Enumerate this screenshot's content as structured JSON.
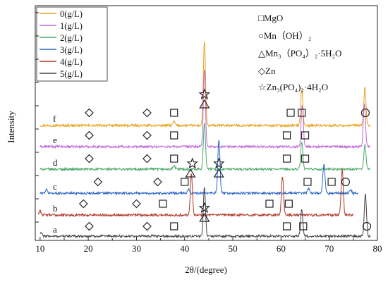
{
  "chart_data": {
    "type": "line",
    "xlabel": "2θ/(degree)",
    "ylabel": "Intensity",
    "xlim": [
      9,
      80
    ],
    "x_ticks": [
      10,
      20,
      30,
      40,
      50,
      60,
      70,
      80
    ],
    "y_ticks_labeled": false,
    "grid": false,
    "legend_placement": "top-left",
    "series": [
      {
        "name": "0(g/L)",
        "curve_label": "f",
        "color": "#e8a21c",
        "peaks": [
          {
            "x": 44.1,
            "h": 1.0
          },
          {
            "x": 64.3,
            "h": 0.42
          },
          {
            "x": 77.4,
            "h": 0.45
          },
          {
            "x": 37.8,
            "h": 0.05
          }
        ]
      },
      {
        "name": "1(g/L)",
        "curve_label": "e",
        "color": "#c06ad6",
        "peaks": [
          {
            "x": 44.1,
            "h": 0.9
          },
          {
            "x": 64.4,
            "h": 0.5
          },
          {
            "x": 77.3,
            "h": 0.52
          }
        ]
      },
      {
        "name": "2(g/L)",
        "curve_label": "d",
        "color": "#4aa86a",
        "peaks": [
          {
            "x": 44.1,
            "h": 0.55
          },
          {
            "x": 64.3,
            "h": 0.32
          },
          {
            "x": 77.4,
            "h": 0.3
          },
          {
            "x": 37.8,
            "h": 0.04
          }
        ]
      },
      {
        "name": "3(g/L)",
        "curve_label": "c",
        "color": "#2a66c8",
        "peaks": [
          {
            "x": 47.1,
            "h": 0.64
          },
          {
            "x": 40.8,
            "h": 0.05
          },
          {
            "x": 68.9,
            "h": 0.35
          },
          {
            "x": 65.7,
            "h": 0.06
          },
          {
            "x": 74.4,
            "h": 0.04
          },
          {
            "x": 11.3,
            "h": 0.04
          }
        ]
      },
      {
        "name": "4(g/L)",
        "curve_label": "b",
        "color": "#b03a2a",
        "peaks": [
          {
            "x": 41.4,
            "h": 0.5
          },
          {
            "x": 60.3,
            "h": 0.46
          },
          {
            "x": 72.7,
            "h": 0.55
          },
          {
            "x": 10.0,
            "h": 0.05
          }
        ]
      },
      {
        "name": "5(g/L)",
        "curve_label": "a",
        "color": "#444444",
        "peaks": [
          {
            "x": 44.1,
            "h": 0.58
          },
          {
            "x": 64.3,
            "h": 0.32
          },
          {
            "x": 77.5,
            "h": 0.5
          },
          {
            "x": 10.2,
            "h": 0.04
          }
        ]
      }
    ],
    "phase_legend": [
      {
        "symbol": "square",
        "label": "□MgO"
      },
      {
        "symbol": "circle",
        "label": "○Mn（OH）₂"
      },
      {
        "symbol": "triangle",
        "label": "△Mn₃（PO₄）₂·5H₂O"
      },
      {
        "symbol": "diamond",
        "label": "◇Zn"
      },
      {
        "symbol": "star",
        "label": "☆Zn₃(PO₄)₂·4H₂O"
      }
    ],
    "peak_markers": [
      {
        "curve": "f",
        "markers": [
          {
            "x": 20.2,
            "symbol": "diamond"
          },
          {
            "x": 32.2,
            "symbol": "diamond"
          },
          {
            "x": 37.8,
            "symbol": "square"
          },
          {
            "x": 62.0,
            "symbol": "square"
          },
          {
            "x": 64.3,
            "symbol": "square"
          },
          {
            "x": 77.5,
            "symbol": "circle"
          },
          {
            "x": 44.1,
            "symbol": "triangle"
          },
          {
            "x": 44.1,
            "symbol": "star"
          }
        ]
      },
      {
        "curve": "e",
        "markers": [
          {
            "x": 20.2,
            "symbol": "diamond"
          },
          {
            "x": 32.2,
            "symbol": "diamond"
          },
          {
            "x": 37.8,
            "symbol": "square"
          },
          {
            "x": 61.2,
            "symbol": "square"
          },
          {
            "x": 65.0,
            "symbol": "square"
          }
        ]
      },
      {
        "curve": "d",
        "markers": [
          {
            "x": 20.2,
            "symbol": "diamond"
          },
          {
            "x": 32.2,
            "symbol": "diamond"
          },
          {
            "x": 37.8,
            "symbol": "square"
          },
          {
            "x": 61.2,
            "symbol": "square"
          },
          {
            "x": 65.0,
            "symbol": "square"
          }
        ]
      },
      {
        "curve": "c",
        "markers": [
          {
            "x": 22.0,
            "symbol": "diamond"
          },
          {
            "x": 34.4,
            "symbol": "diamond"
          },
          {
            "x": 40.0,
            "symbol": "square"
          },
          {
            "x": 65.5,
            "symbol": "square"
          },
          {
            "x": 70.5,
            "symbol": "square"
          },
          {
            "x": 73.4,
            "symbol": "circle"
          },
          {
            "x": 47.1,
            "symbol": "triangle"
          },
          {
            "x": 47.1,
            "symbol": "star"
          },
          {
            "x": 41.2,
            "symbol": "triangle"
          },
          {
            "x": 41.6,
            "symbol": "star"
          }
        ]
      },
      {
        "curve": "b",
        "markers": [
          {
            "x": 19.0,
            "symbol": "diamond"
          },
          {
            "x": 30.0,
            "symbol": "diamond"
          },
          {
            "x": 35.5,
            "symbol": "square"
          },
          {
            "x": 57.6,
            "symbol": "square"
          },
          {
            "x": 61.6,
            "symbol": "square"
          }
        ]
      },
      {
        "curve": "a",
        "markers": [
          {
            "x": 20.2,
            "symbol": "diamond"
          },
          {
            "x": 32.2,
            "symbol": "diamond"
          },
          {
            "x": 37.8,
            "symbol": "square"
          },
          {
            "x": 61.2,
            "symbol": "square"
          },
          {
            "x": 64.6,
            "symbol": "square"
          },
          {
            "x": 77.8,
            "symbol": "circle"
          },
          {
            "x": 44.1,
            "symbol": "triangle"
          },
          {
            "x": 44.1,
            "symbol": "star"
          }
        ]
      }
    ]
  }
}
